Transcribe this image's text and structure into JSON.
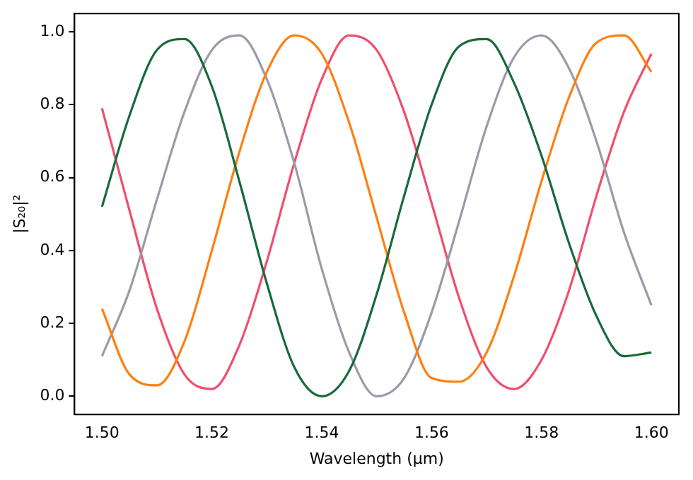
{
  "chart_data": {
    "type": "line",
    "xlabel": "Wavelength (µm)",
    "ylabel": "|S₂₀|²",
    "x": [
      1.5,
      1.505,
      1.51,
      1.515,
      1.52,
      1.525,
      1.53,
      1.535,
      1.54,
      1.545,
      1.55,
      1.555,
      1.56,
      1.565,
      1.57,
      1.575,
      1.58,
      1.585,
      1.59,
      1.595,
      1.6
    ],
    "series": [
      {
        "color": "#176a3a",
        "values": [
          0.52,
          0.77,
          0.95,
          0.98,
          0.85,
          0.59,
          0.31,
          0.08,
          0.0,
          0.07,
          0.28,
          0.55,
          0.8,
          0.96,
          0.98,
          0.86,
          0.66,
          0.42,
          0.22,
          0.11,
          0.12
        ]
      },
      {
        "color": "#ff7f0e",
        "values": [
          0.24,
          0.06,
          0.03,
          0.15,
          0.4,
          0.67,
          0.89,
          0.99,
          0.94,
          0.75,
          0.49,
          0.23,
          0.05,
          0.04,
          0.12,
          0.33,
          0.59,
          0.82,
          0.97,
          0.99,
          0.89
        ]
      },
      {
        "color": "#9b9aab",
        "values": [
          0.11,
          0.29,
          0.54,
          0.78,
          0.95,
          0.99,
          0.87,
          0.64,
          0.35,
          0.12,
          0.0,
          0.05,
          0.23,
          0.48,
          0.74,
          0.93,
          0.99,
          0.9,
          0.7,
          0.45,
          0.25
        ]
      },
      {
        "color": "#f04e6e",
        "values": [
          0.79,
          0.51,
          0.24,
          0.06,
          0.02,
          0.14,
          0.37,
          0.64,
          0.87,
          0.99,
          0.95,
          0.78,
          0.53,
          0.27,
          0.08,
          0.02,
          0.1,
          0.29,
          0.55,
          0.78,
          0.94
        ]
      }
    ],
    "xlim": [
      1.495,
      1.605
    ],
    "ylim": [
      -0.05,
      1.05
    ],
    "xticks": [
      {
        "value": 1.5,
        "label": "1.50"
      },
      1.52,
      1.54,
      1.56,
      1.58,
      {
        "value": 1.6,
        "label": "1.60"
      }
    ],
    "yticks": [
      {
        "value": 0,
        "label": "0.0"
      },
      0.2,
      0.4,
      0.6,
      0.8,
      {
        "value": 1,
        "label": "1.0"
      }
    ],
    "grid": false,
    "legend": false,
    "marker": "none",
    "line_style": "solid"
  }
}
